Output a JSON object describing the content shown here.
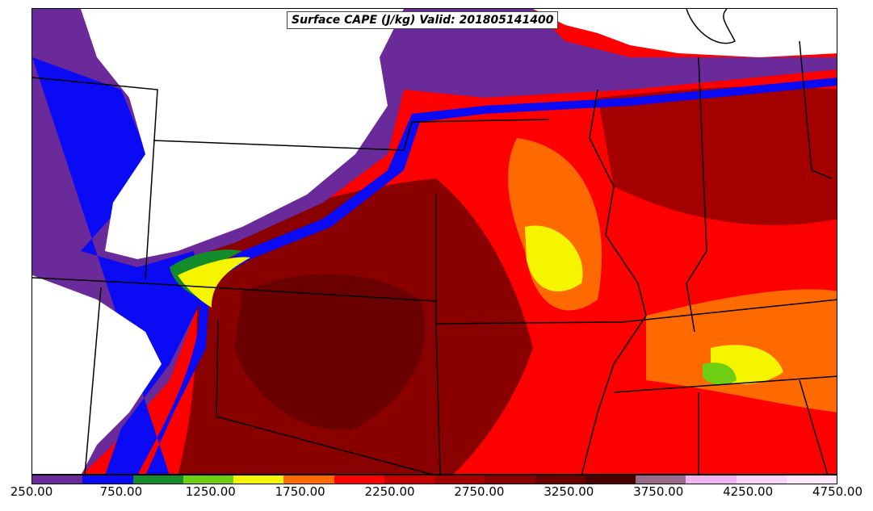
{
  "title": "Surface CAPE (J/kg) Valid: 201805141400",
  "colorbar": {
    "colors": [
      "#6a2a9a",
      "#0a0af5",
      "#148c2c",
      "#6ecf12",
      "#f5f500",
      "#ff6a00",
      "#ff0000",
      "#c80000",
      "#a40000",
      "#8a0000",
      "#6a0000",
      "#4a0000",
      "#9a6a8a",
      "#f0b4f0",
      "#f8d4f8",
      "#ffe8ff"
    ],
    "tick_labels": [
      "250.00",
      "750.00",
      "1250.00",
      "1750.00",
      "2250.00",
      "2750.00",
      "3250.00",
      "3750.00",
      "4250.00",
      "4750.00"
    ],
    "ticks": [
      250,
      750,
      1250,
      1750,
      2250,
      2750,
      3250,
      3750,
      4250,
      4750
    ],
    "range": [
      250,
      4750
    ]
  },
  "legend_units": "J/kg"
}
